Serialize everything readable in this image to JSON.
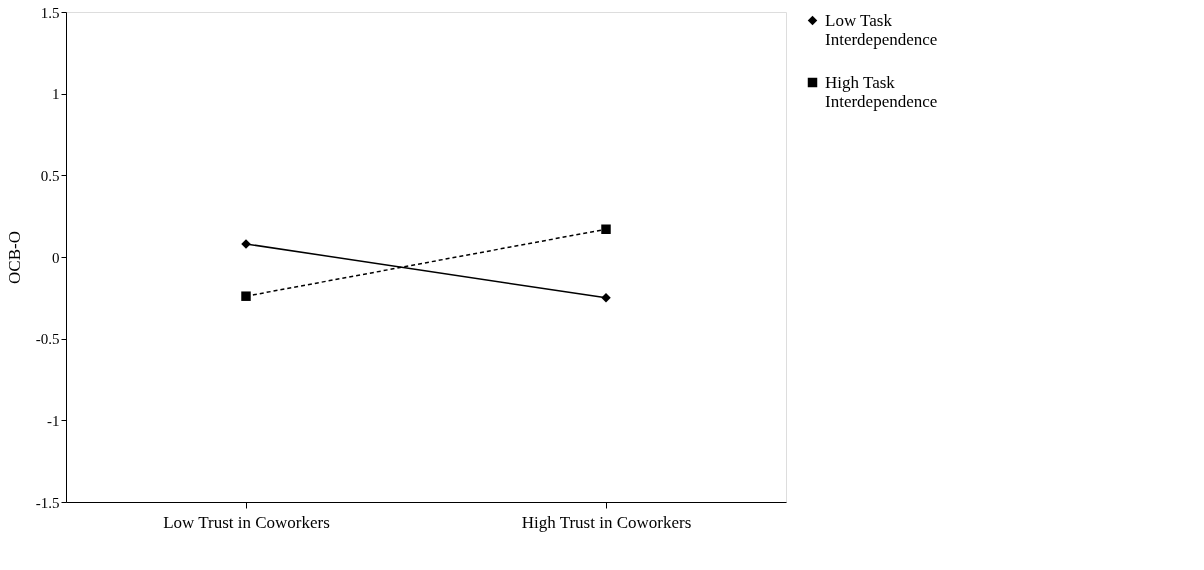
{
  "chart_data": {
    "type": "line",
    "ylabel": "OCB-O",
    "categories": [
      "Low Trust in Coworkers",
      "High Trust in Coworkers"
    ],
    "series": [
      {
        "name": "Low Task Interdependence",
        "color": "#000000",
        "values": [
          0.08,
          -0.25
        ],
        "marker": "diamond",
        "line_style": "solid"
      },
      {
        "name": "High Task Interdependence",
        "color": "#000000",
        "values": [
          -0.24,
          0.17
        ],
        "marker": "square",
        "line_style": "dashed"
      }
    ],
    "ylim": [
      -1.5,
      1.5
    ],
    "yticks": [
      -1.5,
      -1,
      -0.5,
      0,
      0.5,
      1,
      1.5
    ],
    "grid": false,
    "legend": "right"
  }
}
